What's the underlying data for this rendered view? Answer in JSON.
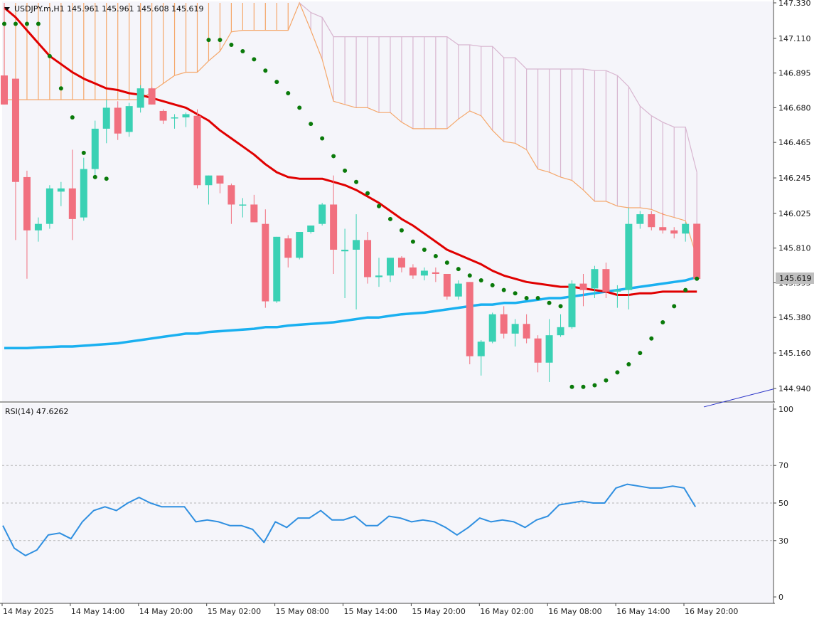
{
  "header": {
    "symbol_line": "USDJPY.m,H1  145.961 145.961 145.608 145.619"
  },
  "price_axis": {
    "ticks": [
      "147.330",
      "147.110",
      "146.895",
      "146.680",
      "146.465",
      "146.245",
      "146.025",
      "145.810",
      "145.595",
      "145.380",
      "145.160",
      "144.940"
    ],
    "current_label": "145.619",
    "current_value": 145.619
  },
  "rsi_panel": {
    "label": "RSI(14) 47.6262",
    "ticks": [
      "100",
      "70",
      "50",
      "30",
      "0"
    ],
    "levels": [
      70,
      50,
      30
    ]
  },
  "time_axis": {
    "labels": [
      "14 May 2025",
      "14 May 14:00",
      "14 May 20:00",
      "15 May 02:00",
      "15 May 08:00",
      "15 May 14:00",
      "15 May 20:00",
      "16 May 02:00",
      "16 May 08:00",
      "16 May 14:00",
      "16 May 20:00"
    ]
  },
  "colors": {
    "bull": "#3ad1b4",
    "bear": "#f1707f",
    "ma_fast": "#e00000",
    "ma_slow": "#1ab0f0",
    "psar": "#0a7a0a",
    "cloud_bull": "#f5a76a",
    "cloud_bear": "#d8b6d0",
    "rsi": "#2f8fe0",
    "current_price_bg": "#bfbfbf",
    "trendline": "#2b34c8"
  },
  "chart_data": [
    {
      "type": "candlestick",
      "title": "USDJPY.m,H1",
      "timeframe": "H1",
      "last_ohlc": {
        "open": 145.961,
        "high": 145.961,
        "low": 145.608,
        "close": 145.619
      },
      "ylim": [
        144.88,
        147.33
      ],
      "candles": [
        {
          "o": 146.88,
          "h": 147.33,
          "l": 146.7,
          "c": 146.7
        },
        {
          "o": 146.86,
          "h": 146.86,
          "l": 145.86,
          "c": 146.22
        },
        {
          "o": 146.25,
          "h": 146.29,
          "l": 145.62,
          "c": 145.92
        },
        {
          "o": 145.92,
          "h": 146.0,
          "l": 145.85,
          "c": 145.96
        },
        {
          "o": 145.96,
          "h": 146.2,
          "l": 145.93,
          "c": 146.18
        },
        {
          "o": 146.16,
          "h": 146.22,
          "l": 146.07,
          "c": 146.18
        },
        {
          "o": 146.18,
          "h": 146.42,
          "l": 145.86,
          "c": 145.99
        },
        {
          "o": 146.0,
          "h": 146.37,
          "l": 145.98,
          "c": 146.3
        },
        {
          "o": 146.3,
          "h": 146.6,
          "l": 146.26,
          "c": 146.55
        },
        {
          "o": 146.55,
          "h": 146.73,
          "l": 146.46,
          "c": 146.68
        },
        {
          "o": 146.68,
          "h": 146.72,
          "l": 146.48,
          "c": 146.52
        },
        {
          "o": 146.53,
          "h": 146.71,
          "l": 146.5,
          "c": 146.69
        },
        {
          "o": 146.68,
          "h": 146.82,
          "l": 146.65,
          "c": 146.8
        },
        {
          "o": 146.8,
          "h": 146.81,
          "l": 146.7,
          "c": 146.7
        },
        {
          "o": 146.66,
          "h": 146.67,
          "l": 146.58,
          "c": 146.6
        },
        {
          "o": 146.62,
          "h": 146.64,
          "l": 146.55,
          "c": 146.62
        },
        {
          "o": 146.62,
          "h": 146.65,
          "l": 146.56,
          "c": 146.64
        },
        {
          "o": 146.63,
          "h": 146.67,
          "l": 146.18,
          "c": 146.2
        },
        {
          "o": 146.2,
          "h": 146.26,
          "l": 146.08,
          "c": 146.26
        },
        {
          "o": 146.26,
          "h": 146.26,
          "l": 146.15,
          "c": 146.21
        },
        {
          "o": 146.2,
          "h": 146.21,
          "l": 145.96,
          "c": 146.08
        },
        {
          "o": 146.08,
          "h": 146.12,
          "l": 146.0,
          "c": 146.08
        },
        {
          "o": 146.08,
          "h": 146.14,
          "l": 145.97,
          "c": 145.97
        },
        {
          "o": 145.96,
          "h": 146.05,
          "l": 145.44,
          "c": 145.48
        },
        {
          "o": 145.48,
          "h": 145.88,
          "l": 145.47,
          "c": 145.88
        },
        {
          "o": 145.87,
          "h": 145.89,
          "l": 145.69,
          "c": 145.75
        },
        {
          "o": 145.75,
          "h": 145.91,
          "l": 145.74,
          "c": 145.91
        },
        {
          "o": 145.91,
          "h": 145.95,
          "l": 145.9,
          "c": 145.95
        },
        {
          "o": 145.96,
          "h": 146.09,
          "l": 145.95,
          "c": 146.08
        },
        {
          "o": 146.08,
          "h": 146.26,
          "l": 145.65,
          "c": 145.8
        },
        {
          "o": 145.79,
          "h": 145.93,
          "l": 145.5,
          "c": 145.8
        },
        {
          "o": 145.8,
          "h": 146.02,
          "l": 145.43,
          "c": 145.86
        },
        {
          "o": 145.86,
          "h": 145.91,
          "l": 145.59,
          "c": 145.63
        },
        {
          "o": 145.63,
          "h": 145.75,
          "l": 145.57,
          "c": 145.64
        },
        {
          "o": 145.64,
          "h": 145.74,
          "l": 145.6,
          "c": 145.75
        },
        {
          "o": 145.75,
          "h": 145.76,
          "l": 145.66,
          "c": 145.69
        },
        {
          "o": 145.69,
          "h": 145.71,
          "l": 145.62,
          "c": 145.64
        },
        {
          "o": 145.64,
          "h": 145.69,
          "l": 145.61,
          "c": 145.67
        },
        {
          "o": 145.66,
          "h": 145.69,
          "l": 145.6,
          "c": 145.65
        },
        {
          "o": 145.65,
          "h": 145.65,
          "l": 145.49,
          "c": 145.51
        },
        {
          "o": 145.51,
          "h": 145.61,
          "l": 145.49,
          "c": 145.59
        },
        {
          "o": 145.6,
          "h": 145.6,
          "l": 145.09,
          "c": 145.14
        },
        {
          "o": 145.14,
          "h": 145.24,
          "l": 145.02,
          "c": 145.23
        },
        {
          "o": 145.23,
          "h": 145.41,
          "l": 145.22,
          "c": 145.4
        },
        {
          "o": 145.4,
          "h": 145.45,
          "l": 145.25,
          "c": 145.28
        },
        {
          "o": 145.28,
          "h": 145.37,
          "l": 145.2,
          "c": 145.34
        },
        {
          "o": 145.34,
          "h": 145.4,
          "l": 145.22,
          "c": 145.25
        },
        {
          "o": 145.25,
          "h": 145.27,
          "l": 145.04,
          "c": 145.1
        },
        {
          "o": 145.1,
          "h": 145.37,
          "l": 144.98,
          "c": 145.27
        },
        {
          "o": 145.27,
          "h": 145.4,
          "l": 145.26,
          "c": 145.32
        },
        {
          "o": 145.32,
          "h": 145.61,
          "l": 145.31,
          "c": 145.59
        },
        {
          "o": 145.59,
          "h": 145.65,
          "l": 145.45,
          "c": 145.55
        },
        {
          "o": 145.56,
          "h": 145.7,
          "l": 145.5,
          "c": 145.68
        },
        {
          "o": 145.68,
          "h": 145.72,
          "l": 145.5,
          "c": 145.54
        },
        {
          "o": 145.54,
          "h": 145.58,
          "l": 145.44,
          "c": 145.55
        },
        {
          "o": 145.55,
          "h": 146.06,
          "l": 145.43,
          "c": 145.96
        },
        {
          "o": 145.96,
          "h": 146.04,
          "l": 145.93,
          "c": 146.02
        },
        {
          "o": 146.02,
          "h": 146.04,
          "l": 145.92,
          "c": 145.94
        },
        {
          "o": 145.94,
          "h": 146.03,
          "l": 145.9,
          "c": 145.92
        },
        {
          "o": 145.92,
          "h": 145.94,
          "l": 145.87,
          "c": 145.9
        },
        {
          "o": 145.9,
          "h": 145.97,
          "l": 145.85,
          "c": 145.96
        },
        {
          "o": 145.961,
          "h": 145.961,
          "l": 145.608,
          "c": 145.619
        }
      ],
      "ma_fast": [
        147.3,
        147.24,
        147.16,
        147.08,
        147.0,
        146.95,
        146.9,
        146.86,
        146.83,
        146.8,
        146.79,
        146.77,
        146.76,
        146.74,
        146.72,
        146.7,
        146.68,
        146.64,
        146.6,
        146.54,
        146.49,
        146.44,
        146.39,
        146.33,
        146.28,
        146.25,
        146.24,
        146.24,
        146.24,
        146.22,
        146.2,
        146.17,
        146.13,
        146.09,
        146.04,
        145.99,
        145.95,
        145.9,
        145.85,
        145.8,
        145.77,
        145.74,
        145.71,
        145.67,
        145.64,
        145.62,
        145.6,
        145.59,
        145.58,
        145.57,
        145.57,
        145.56,
        145.55,
        145.54,
        145.52,
        145.52,
        145.53,
        145.53,
        145.54,
        145.54,
        145.54,
        145.54
      ],
      "ma_slow": [
        145.19,
        145.19,
        145.19,
        145.195,
        145.197,
        145.2,
        145.2,
        145.205,
        145.21,
        145.215,
        145.22,
        145.23,
        145.24,
        145.25,
        145.26,
        145.27,
        145.28,
        145.28,
        145.29,
        145.295,
        145.3,
        145.305,
        145.31,
        145.32,
        145.32,
        145.33,
        145.335,
        145.34,
        145.345,
        145.35,
        145.36,
        145.37,
        145.38,
        145.38,
        145.39,
        145.4,
        145.405,
        145.41,
        145.42,
        145.43,
        145.44,
        145.45,
        145.46,
        145.46,
        145.47,
        145.47,
        145.48,
        145.49,
        145.5,
        145.5,
        145.51,
        145.52,
        145.53,
        145.54,
        145.55,
        145.56,
        145.57,
        145.58,
        145.59,
        145.6,
        145.61,
        145.63
      ],
      "psar": [
        147.2,
        147.2,
        147.2,
        147.2,
        147.0,
        146.8,
        146.62,
        146.4,
        146.25,
        146.24,
        null,
        null,
        null,
        null,
        null,
        null,
        null,
        null,
        147.1,
        147.1,
        147.07,
        147.03,
        146.98,
        146.91,
        146.84,
        146.77,
        146.68,
        146.58,
        146.49,
        146.38,
        146.29,
        146.22,
        146.15,
        146.07,
        145.99,
        145.92,
        145.85,
        145.8,
        145.76,
        145.72,
        145.68,
        145.64,
        145.61,
        145.58,
        145.55,
        145.53,
        145.5,
        145.5,
        145.47,
        145.45,
        144.95,
        144.95,
        144.96,
        144.99,
        145.04,
        145.09,
        145.16,
        145.25,
        145.35,
        145.45,
        145.55,
        145.62
      ],
      "cloud_bull_top": [
        147.33,
        147.33,
        147.33,
        147.33,
        147.33,
        147.33,
        147.33,
        147.33,
        147.33,
        147.33,
        147.33,
        147.33,
        147.33,
        147.33,
        147.33,
        147.33,
        147.33,
        147.33,
        147.33,
        147.33,
        147.33,
        147.33,
        147.33,
        147.33,
        147.33,
        147.33
      ],
      "span_a": [
        146.73,
        146.73,
        146.73,
        146.73,
        146.73,
        146.73,
        146.73,
        146.73,
        146.73,
        146.73,
        146.73,
        146.73,
        146.73,
        146.78,
        146.83,
        146.88,
        146.9,
        146.9,
        146.97,
        147.03,
        147.15,
        147.16,
        147.16,
        147.16,
        147.16,
        147.16,
        147.33,
        147.16,
        146.98,
        146.72,
        146.7,
        146.68,
        146.68,
        146.65,
        146.65,
        146.59,
        146.55,
        146.55,
        146.55,
        146.55,
        146.61,
        146.66,
        146.63,
        146.54,
        146.47,
        146.46,
        146.42,
        146.3,
        146.28,
        146.25,
        146.23,
        146.17,
        146.1,
        146.1,
        146.07,
        146.06,
        146.06,
        146.05,
        146.02,
        146.0,
        145.98,
        145.75
      ],
      "span_b": [
        147.33,
        147.33,
        147.33,
        147.33,
        147.33,
        147.33,
        147.33,
        147.33,
        147.33,
        147.33,
        147.33,
        147.33,
        147.33,
        147.33,
        147.33,
        147.33,
        147.33,
        147.33,
        147.33,
        147.33,
        147.33,
        147.33,
        147.33,
        147.33,
        147.33,
        147.33,
        147.33,
        147.27,
        147.24,
        147.12,
        147.12,
        147.12,
        147.12,
        147.12,
        147.12,
        147.12,
        147.12,
        147.12,
        147.12,
        147.12,
        147.07,
        147.07,
        147.06,
        147.06,
        146.99,
        146.99,
        146.92,
        146.92,
        146.92,
        146.92,
        146.92,
        146.92,
        146.91,
        146.91,
        146.88,
        146.81,
        146.69,
        146.63,
        146.59,
        146.56,
        146.56,
        146.28
      ],
      "cloud_start_index": 26,
      "trendline": {
        "from": {
          "index": 61,
          "value": 144.905
        },
        "to": {
          "index": 67,
          "value": 144.95
        }
      }
    },
    {
      "type": "line",
      "title": "RSI(14) 47.6262",
      "ylim": [
        0,
        100
      ],
      "levels": [
        70,
        50,
        30
      ],
      "values": [
        38,
        26,
        22,
        25,
        33,
        34,
        31,
        40,
        46,
        48,
        46,
        50,
        53,
        50,
        48,
        48,
        48,
        40,
        41,
        40,
        38,
        38,
        36,
        29,
        40,
        37,
        42,
        42,
        46,
        41,
        41,
        43,
        38,
        38,
        43,
        42,
        40,
        41,
        40,
        37,
        33,
        37,
        42,
        40,
        41,
        40,
        37,
        41,
        43,
        49,
        50,
        51,
        50,
        50,
        58,
        60,
        59,
        58,
        58,
        59,
        58,
        48
      ]
    }
  ]
}
